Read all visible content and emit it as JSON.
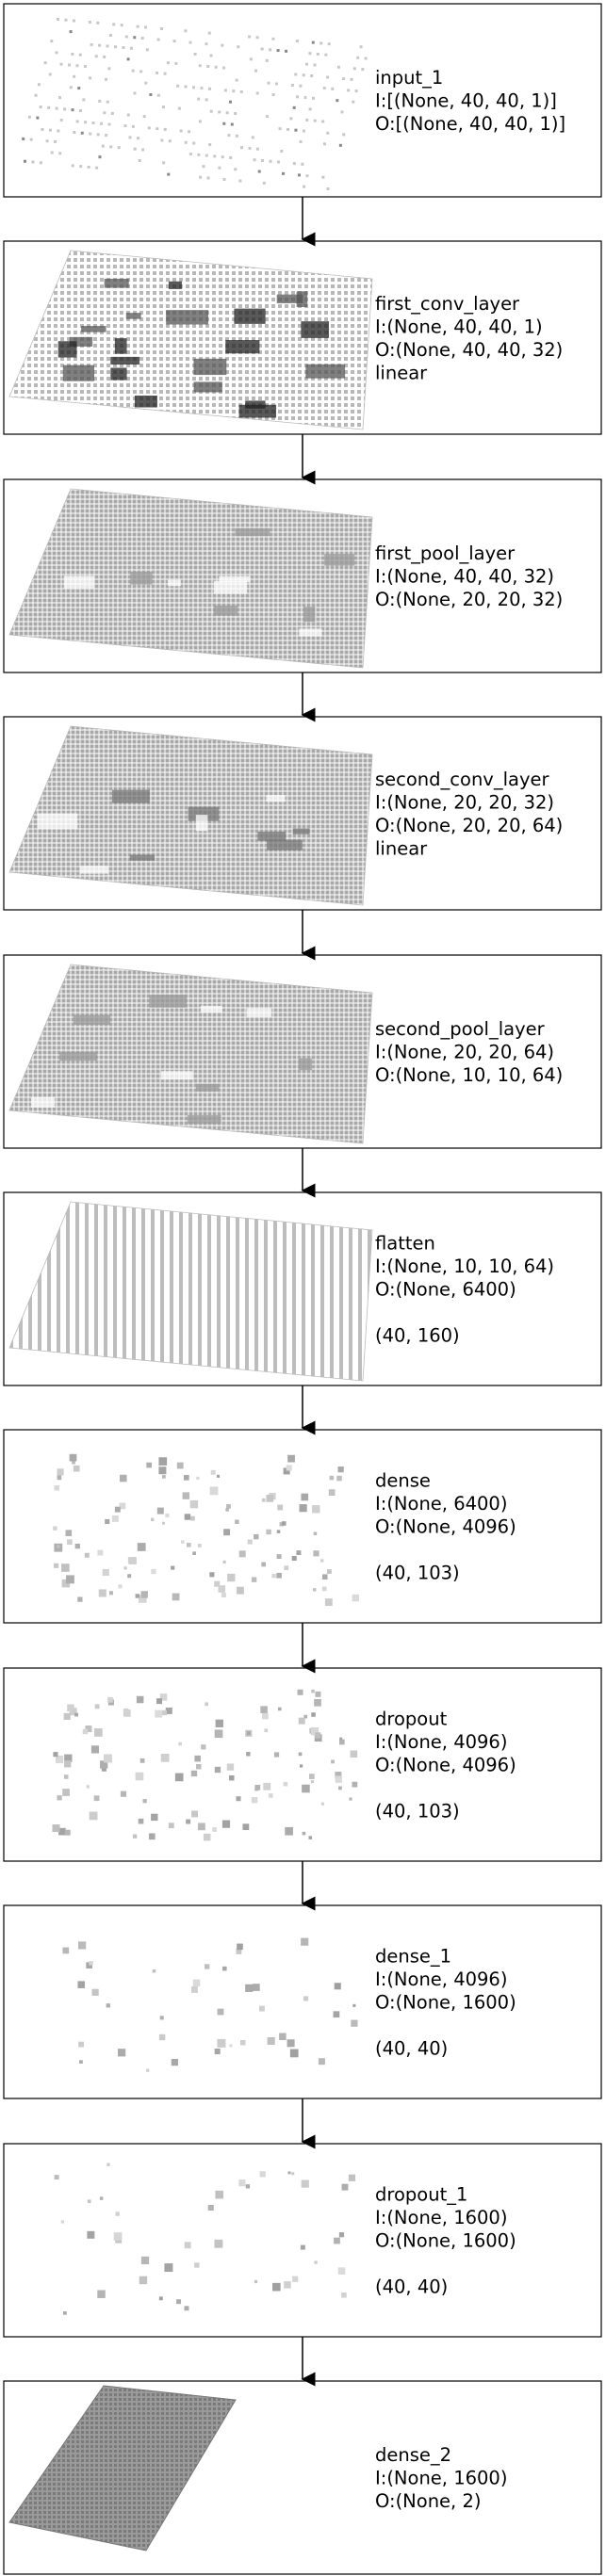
{
  "layers": [
    {
      "lines": [
        "input_1",
        "I:[(None, 40, 40, 1)]",
        "O:[(None, 40, 40, 1)]"
      ],
      "viz": "sparse-plane"
    },
    {
      "lines": [
        "first_conv_layer",
        "I:(None, 40, 40, 1)",
        "O:(None, 40, 40, 32)",
        "linear"
      ],
      "viz": "conv-plane"
    },
    {
      "lines": [
        "first_pool_layer",
        "I:(None, 40, 40, 32)",
        "O:(None, 20, 20, 32)"
      ],
      "viz": "pool-plane"
    },
    {
      "lines": [
        "second_conv_layer",
        "I:(None, 20, 20, 32)",
        "O:(None, 20, 20, 64)",
        "linear"
      ],
      "viz": "conv2-plane"
    },
    {
      "lines": [
        "second_pool_layer",
        "I:(None, 20, 20, 64)",
        "O:(None, 10, 10, 64)"
      ],
      "viz": "pool2-plane"
    },
    {
      "lines": [
        "flatten",
        "I:(None, 10, 10, 64)",
        "O:(None, 6400)",
        "",
        "(40, 160)"
      ],
      "viz": "flatten-plane"
    },
    {
      "lines": [
        "dense",
        "I:(None, 6400)",
        "O:(None, 4096)",
        "",
        "(40, 103)"
      ],
      "viz": "scatter-dense"
    },
    {
      "lines": [
        "dropout",
        "I:(None, 4096)",
        "O:(None, 4096)",
        "",
        "(40, 103)"
      ],
      "viz": "scatter-dense"
    },
    {
      "lines": [
        "dense_1",
        "I:(None, 4096)",
        "O:(None, 1600)",
        "",
        "(40, 40)"
      ],
      "viz": "scatter-sparse"
    },
    {
      "lines": [
        "dropout_1",
        "I:(None, 1600)",
        "O:(None, 1600)",
        "",
        "(40, 40)"
      ],
      "viz": "scatter-sparse"
    },
    {
      "lines": [
        "dense_2",
        "I:(None, 1600)",
        "O:(None, 2)"
      ],
      "viz": "solid-plane"
    }
  ]
}
